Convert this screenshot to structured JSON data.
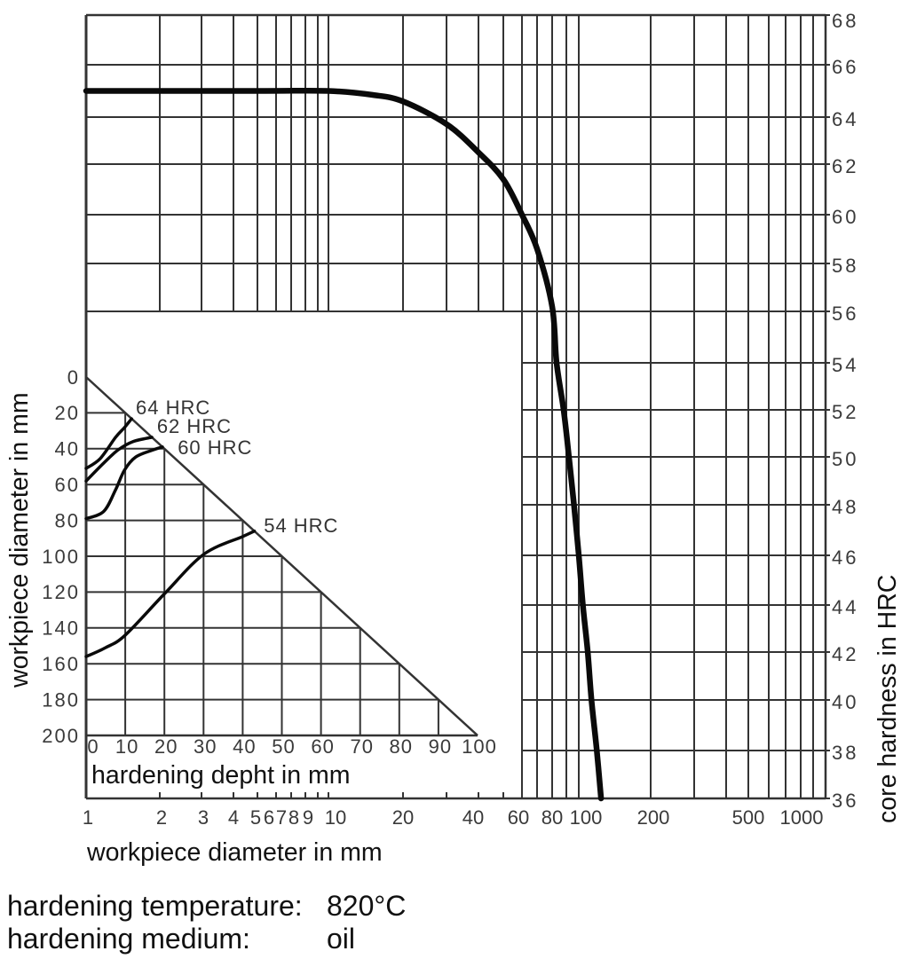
{
  "chart_data": {
    "type": "line",
    "title": "",
    "main": {
      "xlabel": "workpiece diameter in mm",
      "ylabel": "core hardness in HRC",
      "xscale": "log",
      "xlim": [
        1,
        1000
      ],
      "ylim": [
        36,
        68
      ],
      "grid": true,
      "x_tick_labels": [
        "1",
        "2",
        "3",
        "4",
        "5",
        "6",
        "7",
        "8",
        "9",
        "10",
        "20",
        "40",
        "60",
        "80",
        "100",
        "200",
        "500",
        "1000"
      ],
      "x_tick_values": [
        1,
        2,
        3,
        4,
        5,
        6,
        7,
        8,
        9,
        10,
        20,
        40,
        60,
        80,
        100,
        200,
        500,
        1000
      ],
      "x_grid_values": [
        2,
        3,
        4,
        5,
        6,
        7,
        8,
        9,
        10,
        20,
        30,
        40,
        50,
        60,
        70,
        80,
        90,
        100,
        200,
        300,
        400,
        500,
        600,
        700,
        800,
        900
      ],
      "y_tick_values": [
        68,
        66,
        64,
        62,
        60,
        58,
        56,
        54,
        52,
        50,
        48,
        46,
        44,
        42,
        40,
        38,
        36
      ],
      "y_tick_labels": [
        "68",
        "66",
        "64",
        "62",
        "60",
        "58",
        "56",
        "54",
        "52",
        "50",
        "48",
        "46",
        "44",
        "42",
        "40",
        "38",
        "36"
      ],
      "y_axis_position": "right",
      "series": [
        {
          "name": "core hardness",
          "x": [
            1,
            5,
            10,
            15,
            20,
            30,
            40,
            50,
            60,
            70,
            80,
            83,
            88,
            92,
            96,
            100,
            104,
            109,
            113,
            119,
            124
          ],
          "y": [
            65,
            65,
            65,
            64.85,
            64.6,
            63.7,
            62.5,
            61.4,
            60.0,
            58.6,
            56.2,
            54,
            52,
            50,
            48,
            46,
            44,
            42,
            40,
            38,
            36
          ]
        }
      ]
    },
    "inset": {
      "type": "line",
      "xlabel": "hardening depht in mm",
      "ylabel": "workpiece diameter in mm",
      "xlim": [
        0,
        100
      ],
      "ylim": [
        200,
        0
      ],
      "x_tick_values": [
        0,
        10,
        20,
        30,
        40,
        50,
        60,
        70,
        80,
        90,
        100
      ],
      "x_tick_labels": [
        "0",
        "10",
        "20",
        "30",
        "40",
        "50",
        "60",
        "70",
        "80",
        "90",
        "100"
      ],
      "y_tick_values": [
        0,
        20,
        40,
        60,
        80,
        100,
        120,
        140,
        160,
        180,
        200
      ],
      "y_tick_labels": [
        "0",
        "20",
        "40",
        "60",
        "80",
        "100",
        "120",
        "140",
        "160",
        "180",
        "200"
      ],
      "boundary": "diagonal line: hardening depth = workpiece diameter / 2",
      "series": [
        {
          "name": "64 HRC",
          "x": [
            0,
            3.6,
            7.5,
            9.8,
            11.6
          ],
          "y": [
            51,
            45.5,
            33.7,
            28.2,
            23.3
          ],
          "label_pos": [
            12.7,
            20.8
          ]
        },
        {
          "name": "62 HRC",
          "x": [
            0,
            4.5,
            8.2,
            12,
            16.8
          ],
          "y": [
            58,
            48,
            40.6,
            36,
            33.6
          ],
          "label_pos": [
            18.1,
            31.2
          ]
        },
        {
          "name": "60 HRC",
          "x": [
            0,
            4.5,
            7.5,
            9.8,
            12.7,
            17.2,
            19.5
          ],
          "y": [
            79,
            75,
            63,
            52,
            44.6,
            40.6,
            39
          ],
          "label_pos": [
            23.4,
            43.1
          ]
        },
        {
          "name": "54 HRC",
          "x": [
            0,
            5,
            10,
            20,
            30,
            40,
            43
          ],
          "y": [
            156,
            151,
            144,
            121,
            99,
            89,
            86
          ],
          "label_pos": [
            45.4,
            86.6
          ]
        }
      ]
    }
  },
  "notes": {
    "temperature_label": "hardening temperature:",
    "temperature_value": "820°C",
    "medium_label": "hardening medium:",
    "medium_value": "oil"
  }
}
